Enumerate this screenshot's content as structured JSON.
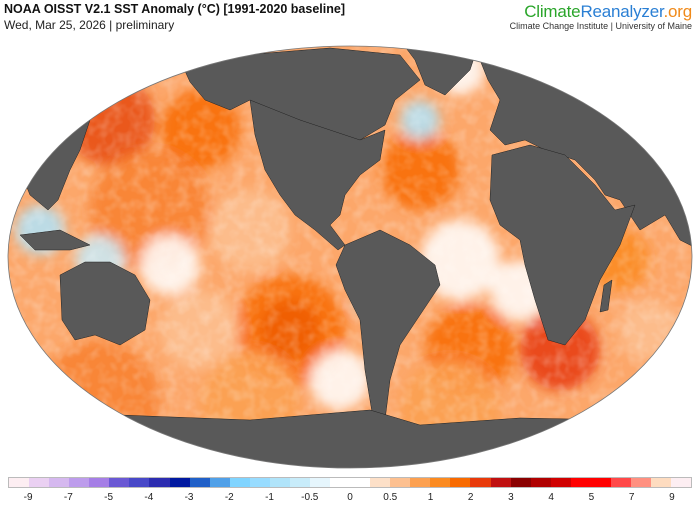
{
  "header": {
    "title": "NOAA OISST V2.1 SST Anomaly (°C) [1991-2020 baseline]",
    "subtitle": "Wed, Mar 25, 2026 | preliminary"
  },
  "brand": {
    "part1": "Climate",
    "part2": "Reanalyzer",
    "part3": ".org",
    "institution": "Climate Change Institute | University of Maine"
  },
  "map": {
    "variable": "SST Anomaly (°C)",
    "land_color": "#595959",
    "projection": "global-ellipse"
  },
  "colorbar": {
    "colors": [
      "#fdeef2",
      "#ead0f2",
      "#d5b8ef",
      "#bd9cec",
      "#a57ee6",
      "#6a58d4",
      "#4848c8",
      "#2c2cb0",
      "#0018a0",
      "#2060c8",
      "#50a0e8",
      "#80d4ff",
      "#98dcff",
      "#b0e4fa",
      "#c8ecfa",
      "#e6f6fd",
      "#ffffff",
      "#ffffff",
      "#fde0c8",
      "#fdc090",
      "#fca050",
      "#fb8a20",
      "#f86a00",
      "#e83a0a",
      "#c01010",
      "#8a0000",
      "#b00000",
      "#d00000",
      "#ff0000",
      "#ff0000",
      "#ff4848",
      "#ff9080",
      "#fedcc0",
      "#fdeef2"
    ],
    "labels": [
      "-9",
      "-7",
      "-5",
      "-4",
      "-3",
      "-2",
      "-1",
      "-0.5",
      "0",
      "0.5",
      "1",
      "2",
      "3",
      "4",
      "5",
      "7",
      "9"
    ]
  }
}
